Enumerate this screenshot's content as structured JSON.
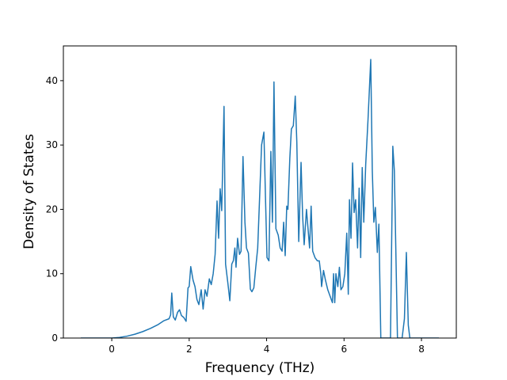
{
  "chart_data": {
    "type": "line",
    "x_label": "Frequency (THz)",
    "y_label": "Density of States",
    "color": "#1f77b4",
    "x": [
      -0.8,
      0,
      0.2,
      0.4,
      0.6,
      0.8,
      1.0,
      1.2,
      1.35,
      1.48,
      1.52,
      1.55,
      1.59,
      1.64,
      1.7,
      1.75,
      1.8,
      1.86,
      1.92,
      1.97,
      2.0,
      2.04,
      2.1,
      2.15,
      2.2,
      2.25,
      2.31,
      2.36,
      2.41,
      2.46,
      2.52,
      2.57,
      2.62,
      2.67,
      2.72,
      2.76,
      2.8,
      2.84,
      2.9,
      2.94,
      3.0,
      3.05,
      3.1,
      3.14,
      3.18,
      3.21,
      3.25,
      3.3,
      3.34,
      3.39,
      3.44,
      3.48,
      3.53,
      3.58,
      3.62,
      3.67,
      3.72,
      3.77,
      3.82,
      3.87,
      3.93,
      3.97,
      4.01,
      4.06,
      4.11,
      4.15,
      4.19,
      4.24,
      4.3,
      4.35,
      4.4,
      4.44,
      4.48,
      4.52,
      4.55,
      4.6,
      4.64,
      4.69,
      4.74,
      4.78,
      4.83,
      4.89,
      4.93,
      4.97,
      5.03,
      5.07,
      5.11,
      5.15,
      5.19,
      5.25,
      5.31,
      5.36,
      5.4,
      5.42,
      5.47,
      5.52,
      5.58,
      5.64,
      5.7,
      5.73,
      5.76,
      5.79,
      5.84,
      5.88,
      5.92,
      5.97,
      6.02,
      6.07,
      6.11,
      6.14,
      6.18,
      6.22,
      6.26,
      6.3,
      6.35,
      6.39,
      6.43,
      6.47,
      6.51,
      6.56,
      6.62,
      6.69,
      6.73,
      6.77,
      6.81,
      6.86,
      6.9,
      6.95,
      7.2,
      7.26,
      7.3,
      7.38,
      7.5,
      7.56,
      7.61,
      7.66,
      7.7,
      8.45
    ],
    "values": [
      0,
      0,
      0.1,
      0.3,
      0.6,
      1.0,
      1.5,
      2.1,
      2.7,
      3.0,
      3.6,
      7.0,
      3.3,
      2.8,
      4.0,
      4.4,
      3.5,
      3.2,
      2.6,
      7.8,
      8.0,
      11.1,
      9.0,
      8.0,
      6.0,
      5.2,
      7.5,
      4.5,
      7.5,
      6.5,
      9.2,
      8.3,
      10.0,
      13.0,
      21.3,
      15.5,
      23.2,
      19.8,
      36.0,
      11.5,
      8.5,
      5.8,
      11.5,
      12.0,
      14.0,
      11.0,
      15.5,
      13.0,
      13.5,
      28.2,
      18.0,
      14.0,
      13.2,
      7.6,
      7.2,
      7.8,
      11.0,
      14.0,
      22.0,
      30.0,
      32.0,
      22.0,
      12.5,
      12.0,
      29.0,
      18.0,
      39.8,
      17.0,
      16.0,
      14.0,
      13.5,
      18.0,
      12.8,
      20.5,
      20.0,
      28.0,
      32.5,
      33.0,
      37.6,
      30.5,
      15.0,
      27.3,
      19.0,
      14.5,
      20.0,
      17.0,
      14.0,
      20.5,
      13.5,
      12.5,
      12.0,
      12.0,
      10.0,
      8.0,
      10.5,
      9.0,
      7.5,
      6.5,
      5.5,
      10.0,
      5.5,
      10.0,
      8.0,
      11.0,
      7.5,
      8.0,
      10.0,
      16.3,
      6.8,
      21.5,
      15.5,
      27.2,
      19.5,
      21.5,
      14.0,
      23.3,
      12.5,
      26.5,
      18.0,
      27.0,
      34.0,
      43.3,
      26.0,
      18.0,
      20.3,
      13.3,
      17.7,
      0,
      0,
      29.8,
      26.0,
      0,
      0,
      3.0,
      13.3,
      2.0,
      0,
      0
    ],
    "xlim": [
      -1.25,
      8.9
    ],
    "ylim": [
      0,
      45.4
    ],
    "xticks": [
      0,
      2,
      4,
      6,
      8
    ],
    "yticks": [
      0,
      10,
      20,
      30,
      40
    ]
  }
}
